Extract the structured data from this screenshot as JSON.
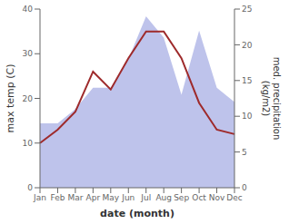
{
  "chart_data": {
    "type": "line",
    "categories": [
      "Jan",
      "Feb",
      "Mar",
      "Apr",
      "May",
      "Jun",
      "Jul",
      "Aug",
      "Sep",
      "Oct",
      "Nov",
      "Dec"
    ],
    "series": [
      {
        "type": "area",
        "axis": "y2",
        "color": "#b3b9e8",
        "values": [
          9,
          9,
          11,
          14,
          14,
          18,
          24,
          21,
          13,
          22,
          14,
          12
        ]
      },
      {
        "type": "line",
        "color": "#9e2a2b",
        "values": [
          10,
          13,
          17,
          26,
          22,
          29,
          35,
          35,
          29,
          19,
          13,
          12
        ]
      }
    ],
    "x_label": "date (month)",
    "y_label": "max temp (C)",
    "y2_label": "med. precipitation\n(kg/m2)",
    "ylim": [
      0,
      40
    ],
    "yticks": [
      0,
      10,
      20,
      30,
      40
    ],
    "y2lim": [
      0,
      25
    ],
    "y2ticks": [
      0,
      5,
      10,
      15,
      20,
      25
    ]
  }
}
